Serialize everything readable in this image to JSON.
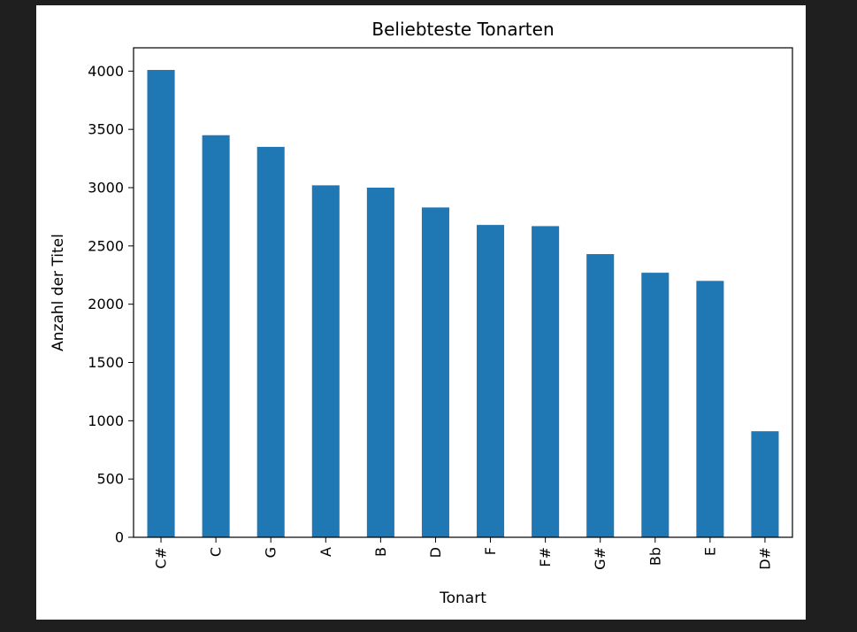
{
  "chart_data": {
    "type": "bar",
    "title": "Beliebteste Tonarten",
    "xlabel": "Tonart",
    "ylabel": "Anzahl der Titel",
    "categories": [
      "C#",
      "C",
      "G",
      "A",
      "B",
      "D",
      "F",
      "F#",
      "G#",
      "Bb",
      "E",
      "D#"
    ],
    "values": [
      4010,
      3450,
      3350,
      3020,
      3000,
      2830,
      2680,
      2670,
      2430,
      2270,
      2200,
      910
    ],
    "ylim": [
      0,
      4200
    ],
    "yticks": [
      0,
      500,
      1000,
      1500,
      2000,
      2500,
      3000,
      3500,
      4000
    ],
    "grid": false,
    "legend": "none",
    "bar_color": "#1f77b4"
  },
  "colors": {
    "page_background": "#1f1f1f",
    "figure_background": "#ffffff",
    "bar": "#1f77b4"
  }
}
